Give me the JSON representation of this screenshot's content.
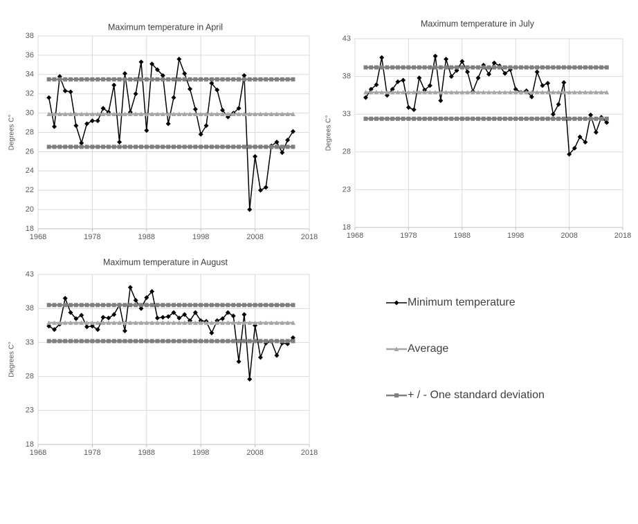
{
  "chart_data": [
    {
      "type": "line",
      "title": "Maximum temperature in April",
      "ylabel": "Degrees C°",
      "x": [
        1970,
        1971,
        1972,
        1973,
        1974,
        1975,
        1976,
        1977,
        1978,
        1979,
        1980,
        1981,
        1982,
        1983,
        1984,
        1985,
        1986,
        1987,
        1988,
        1989,
        1990,
        1991,
        1992,
        1993,
        1994,
        1995,
        1996,
        1997,
        1998,
        1999,
        2000,
        2001,
        2002,
        2003,
        2004,
        2005,
        2006,
        2007,
        2008,
        2009,
        2010,
        2011,
        2012,
        2013,
        2014,
        2015
      ],
      "xlim": [
        1968,
        2018
      ],
      "xticks": [
        1968,
        1978,
        1988,
        1998,
        2008,
        2018
      ],
      "ylim": [
        18,
        38
      ],
      "yticks": [
        18,
        20,
        22,
        24,
        26,
        28,
        30,
        32,
        34,
        36,
        38
      ],
      "grid": true,
      "series": [
        {
          "color": "#000000",
          "marker": "diamond",
          "values": [
            31.6,
            28.6,
            33.8,
            32.3,
            32.2,
            28.7,
            26.9,
            28.9,
            29.2,
            29.2,
            30.5,
            30.1,
            32.9,
            27.0,
            34.1,
            30.1,
            32.0,
            35.3,
            28.2,
            35.1,
            34.5,
            33.9,
            28.9,
            31.6,
            35.6,
            34.1,
            32.5,
            30.4,
            27.8,
            28.7,
            33.1,
            32.4,
            30.3,
            29.6,
            30.0,
            30.5,
            33.9,
            20.0,
            25.5,
            22.0,
            22.3,
            26.6,
            27.0,
            25.9,
            27.2,
            28.1
          ]
        },
        {
          "color": "#a6a6a6",
          "marker": "triangle",
          "values": [
            29.9,
            29.9,
            29.9,
            29.9,
            29.9,
            29.9,
            29.9,
            29.9,
            29.9,
            29.9,
            29.9,
            29.9,
            29.9,
            29.9,
            29.9,
            29.9,
            29.9,
            29.9,
            29.9,
            29.9,
            29.9,
            29.9,
            29.9,
            29.9,
            29.9,
            29.9,
            29.9,
            29.9,
            29.9,
            29.9,
            29.9,
            29.9,
            29.9,
            29.9,
            29.9,
            29.9,
            29.9,
            29.9,
            29.9,
            29.9,
            29.9,
            29.9,
            29.9,
            29.9,
            29.9,
            29.9
          ]
        },
        {
          "color": "#7f7f7f",
          "marker": "square",
          "values": [
            33.5,
            33.5,
            33.5,
            33.5,
            33.5,
            33.5,
            33.5,
            33.5,
            33.5,
            33.5,
            33.5,
            33.5,
            33.5,
            33.5,
            33.5,
            33.5,
            33.5,
            33.5,
            33.5,
            33.5,
            33.5,
            33.5,
            33.5,
            33.5,
            33.5,
            33.5,
            33.5,
            33.5,
            33.5,
            33.5,
            33.5,
            33.5,
            33.5,
            33.5,
            33.5,
            33.5,
            33.5,
            33.5,
            33.5,
            33.5,
            33.5,
            33.5,
            33.5,
            33.5,
            33.5,
            33.5
          ]
        },
        {
          "color": "#7f7f7f",
          "marker": "square",
          "values": [
            26.5,
            26.5,
            26.5,
            26.5,
            26.5,
            26.5,
            26.5,
            26.5,
            26.5,
            26.5,
            26.5,
            26.5,
            26.5,
            26.5,
            26.5,
            26.5,
            26.5,
            26.5,
            26.5,
            26.5,
            26.5,
            26.5,
            26.5,
            26.5,
            26.5,
            26.5,
            26.5,
            26.5,
            26.5,
            26.5,
            26.5,
            26.5,
            26.5,
            26.5,
            26.5,
            26.5,
            26.5,
            26.5,
            26.5,
            26.5,
            26.5,
            26.5,
            26.5,
            26.5,
            26.5,
            26.5
          ]
        }
      ]
    },
    {
      "type": "line",
      "title": "Maximum temperature in July",
      "ylabel": "Degrees C°",
      "x": [
        1970,
        1971,
        1972,
        1973,
        1974,
        1975,
        1976,
        1977,
        1978,
        1979,
        1980,
        1981,
        1982,
        1983,
        1984,
        1985,
        1986,
        1987,
        1988,
        1989,
        1990,
        1991,
        1992,
        1993,
        1994,
        1995,
        1996,
        1997,
        1998,
        1999,
        2000,
        2001,
        2002,
        2003,
        2004,
        2005,
        2006,
        2007,
        2008,
        2009,
        2010,
        2011,
        2012,
        2013,
        2014,
        2015
      ],
      "xlim": [
        1968,
        2018
      ],
      "xticks": [
        1968,
        1978,
        1988,
        1998,
        2008,
        2018
      ],
      "ylim": [
        18,
        43
      ],
      "yticks": [
        18,
        23,
        28,
        33,
        38,
        43
      ],
      "grid": true,
      "series": [
        {
          "color": "#000000",
          "marker": "diamond",
          "values": [
            35.2,
            36.3,
            36.9,
            40.5,
            35.5,
            36.3,
            37.3,
            37.5,
            33.9,
            33.6,
            37.8,
            36.2,
            36.8,
            40.7,
            34.8,
            40.3,
            38.0,
            38.8,
            40.0,
            38.6,
            36.0,
            37.8,
            39.5,
            38.3,
            39.8,
            39.4,
            38.4,
            38.9,
            36.3,
            35.9,
            36.1,
            35.3,
            38.6,
            36.8,
            37.1,
            33.0,
            34.3,
            37.2,
            27.7,
            28.5,
            30.0,
            29.3,
            32.9,
            30.6,
            32.6,
            31.9
          ]
        },
        {
          "color": "#a6a6a6",
          "marker": "triangle",
          "values": [
            35.9,
            35.9,
            35.9,
            35.9,
            35.9,
            35.9,
            35.9,
            35.9,
            35.9,
            35.9,
            35.9,
            35.9,
            35.9,
            35.9,
            35.9,
            35.9,
            35.9,
            35.9,
            35.9,
            35.9,
            35.9,
            35.9,
            35.9,
            35.9,
            35.9,
            35.9,
            35.9,
            35.9,
            35.9,
            35.9,
            35.9,
            35.9,
            35.9,
            35.9,
            35.9,
            35.9,
            35.9,
            35.9,
            35.9,
            35.9,
            35.9,
            35.9,
            35.9,
            35.9,
            35.9,
            35.9
          ]
        },
        {
          "color": "#7f7f7f",
          "marker": "square",
          "values": [
            39.2,
            39.2,
            39.2,
            39.2,
            39.2,
            39.2,
            39.2,
            39.2,
            39.2,
            39.2,
            39.2,
            39.2,
            39.2,
            39.2,
            39.2,
            39.2,
            39.2,
            39.2,
            39.2,
            39.2,
            39.2,
            39.2,
            39.2,
            39.2,
            39.2,
            39.2,
            39.2,
            39.2,
            39.2,
            39.2,
            39.2,
            39.2,
            39.2,
            39.2,
            39.2,
            39.2,
            39.2,
            39.2,
            39.2,
            39.2,
            39.2,
            39.2,
            39.2,
            39.2,
            39.2,
            39.2
          ]
        },
        {
          "color": "#7f7f7f",
          "marker": "square",
          "values": [
            32.4,
            32.4,
            32.4,
            32.4,
            32.4,
            32.4,
            32.4,
            32.4,
            32.4,
            32.4,
            32.4,
            32.4,
            32.4,
            32.4,
            32.4,
            32.4,
            32.4,
            32.4,
            32.4,
            32.4,
            32.4,
            32.4,
            32.4,
            32.4,
            32.4,
            32.4,
            32.4,
            32.4,
            32.4,
            32.4,
            32.4,
            32.4,
            32.4,
            32.4,
            32.4,
            32.4,
            32.4,
            32.4,
            32.4,
            32.4,
            32.4,
            32.4,
            32.4,
            32.4,
            32.4,
            32.4
          ]
        }
      ]
    },
    {
      "type": "line",
      "title": "Maximum temperature in August",
      "ylabel": "Degrees C°",
      "x": [
        1970,
        1971,
        1972,
        1973,
        1974,
        1975,
        1976,
        1977,
        1978,
        1979,
        1980,
        1981,
        1982,
        1983,
        1984,
        1985,
        1986,
        1987,
        1988,
        1989,
        1990,
        1991,
        1992,
        1993,
        1994,
        1995,
        1996,
        1997,
        1998,
        1999,
        2000,
        2001,
        2002,
        2003,
        2004,
        2005,
        2006,
        2007,
        2008,
        2009,
        2010,
        2011,
        2012,
        2013,
        2014,
        2015
      ],
      "xlim": [
        1968,
        2018
      ],
      "xticks": [
        1968,
        1978,
        1988,
        1998,
        2008,
        2018
      ],
      "ylim": [
        18,
        43
      ],
      "yticks": [
        18,
        23,
        28,
        33,
        38,
        43
      ],
      "grid": true,
      "series": [
        {
          "color": "#000000",
          "marker": "diamond",
          "values": [
            35.4,
            34.9,
            35.7,
            39.5,
            37.4,
            36.5,
            37.0,
            35.3,
            35.4,
            34.9,
            36.7,
            36.6,
            37.1,
            38.5,
            34.7,
            41.1,
            39.2,
            38.0,
            39.6,
            40.5,
            36.6,
            36.7,
            36.8,
            37.4,
            36.6,
            37.1,
            36.2,
            37.4,
            36.2,
            36.1,
            34.4,
            36.2,
            36.5,
            37.4,
            36.9,
            30.2,
            37.1,
            27.6,
            35.5,
            30.8,
            32.9,
            33.2,
            31.1,
            32.9,
            32.8,
            33.7
          ]
        },
        {
          "color": "#a6a6a6",
          "marker": "triangle",
          "values": [
            35.9,
            35.9,
            35.9,
            35.9,
            35.9,
            35.9,
            35.9,
            35.9,
            35.9,
            35.9,
            35.9,
            35.9,
            35.9,
            35.9,
            35.9,
            35.9,
            35.9,
            35.9,
            35.9,
            35.9,
            35.9,
            35.9,
            35.9,
            35.9,
            35.9,
            35.9,
            35.9,
            35.9,
            35.9,
            35.9,
            35.9,
            35.9,
            35.9,
            35.9,
            35.9,
            35.9,
            35.9,
            35.9,
            35.9,
            35.9,
            35.9,
            35.9,
            35.9,
            35.9,
            35.9,
            35.9
          ]
        },
        {
          "color": "#7f7f7f",
          "marker": "square",
          "values": [
            38.5,
            38.5,
            38.5,
            38.5,
            38.5,
            38.5,
            38.5,
            38.5,
            38.5,
            38.5,
            38.5,
            38.5,
            38.5,
            38.5,
            38.5,
            38.5,
            38.5,
            38.5,
            38.5,
            38.5,
            38.5,
            38.5,
            38.5,
            38.5,
            38.5,
            38.5,
            38.5,
            38.5,
            38.5,
            38.5,
            38.5,
            38.5,
            38.5,
            38.5,
            38.5,
            38.5,
            38.5,
            38.5,
            38.5,
            38.5,
            38.5,
            38.5,
            38.5,
            38.5,
            38.5,
            38.5
          ]
        },
        {
          "color": "#7f7f7f",
          "marker": "square",
          "values": [
            33.2,
            33.2,
            33.2,
            33.2,
            33.2,
            33.2,
            33.2,
            33.2,
            33.2,
            33.2,
            33.2,
            33.2,
            33.2,
            33.2,
            33.2,
            33.2,
            33.2,
            33.2,
            33.2,
            33.2,
            33.2,
            33.2,
            33.2,
            33.2,
            33.2,
            33.2,
            33.2,
            33.2,
            33.2,
            33.2,
            33.2,
            33.2,
            33.2,
            33.2,
            33.2,
            33.2,
            33.2,
            33.2,
            33.2,
            33.2,
            33.2,
            33.2,
            33.2,
            33.2,
            33.2,
            33.2
          ]
        }
      ]
    }
  ],
  "legend": {
    "entries": [
      {
        "name": "Minimum temperature",
        "color": "#000000",
        "marker": "diamond"
      },
      {
        "name": "Average",
        "color": "#a6a6a6",
        "marker": "triangle"
      },
      {
        "name": "+ / - One standard deviation",
        "color": "#7f7f7f",
        "marker": "square"
      }
    ]
  }
}
